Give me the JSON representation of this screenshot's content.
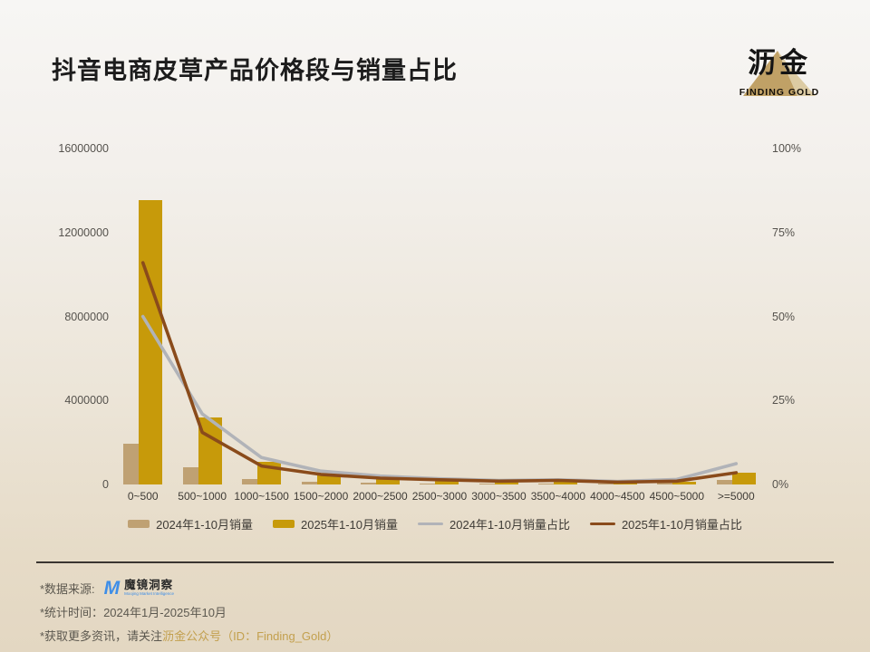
{
  "page": {
    "title": "抖音电商皮草产品价格段与销量占比",
    "logo": {
      "cn": "沥金",
      "en": "FINDING GOLD"
    }
  },
  "chart_data": {
    "type": "bar+line dual-axis",
    "categories": [
      "0~500",
      "500~1000",
      "1000~1500",
      "1500~2000",
      "2000~2500",
      "2500~3000",
      "3000~3500",
      "3500~4000",
      "4000~4500",
      "4500~5000",
      ">=5000"
    ],
    "series": [
      {
        "name": "2024年1-10月销量",
        "type": "bar",
        "axis": "left",
        "color": "#bfa173",
        "values": [
          1950000,
          820000,
          260000,
          130000,
          90000,
          60000,
          45000,
          50000,
          30000,
          100000,
          230000
        ]
      },
      {
        "name": "2025年1-10月销量",
        "type": "bar",
        "axis": "left",
        "color": "#c79a0a",
        "values": [
          13550000,
          3200000,
          1080000,
          520000,
          320000,
          260000,
          170000,
          260000,
          100000,
          110000,
          560000
        ]
      },
      {
        "name": "2024年1-10月销量占比",
        "type": "line",
        "axis": "right",
        "color": "#b1b3b8",
        "values": [
          50,
          21,
          8,
          4,
          2.5,
          1.7,
          1.2,
          1.4,
          0.9,
          1.5,
          6.2
        ]
      },
      {
        "name": "2025年1-10月销量占比",
        "type": "line",
        "axis": "right",
        "color": "#8a4b1b",
        "values": [
          66,
          15.5,
          5.5,
          3,
          1.9,
          1.4,
          1.0,
          1.2,
          0.7,
          1.0,
          3.5
        ]
      }
    ],
    "left_axis": {
      "ticks": [
        "16000000",
        "12000000",
        "8000000",
        "4000000",
        "0"
      ],
      "max": 16000000
    },
    "right_axis": {
      "ticks": [
        "100%",
        "75%",
        "50%",
        "25%",
        "0%"
      ],
      "max": 100
    },
    "grid": false,
    "legend_position": "bottom"
  },
  "footer": {
    "source_label": "*数据来源:",
    "source_logo_m": "M",
    "source_name": "魔镜洞察",
    "source_sub": "Moojing Market Intelligence",
    "time_label": "*统计时间：",
    "time_value": "2024年1月-2025年10月",
    "more_prefix": "*获取更多资讯，请关注",
    "more_gold": "沥金公众号（ID：Finding_Gold）"
  }
}
